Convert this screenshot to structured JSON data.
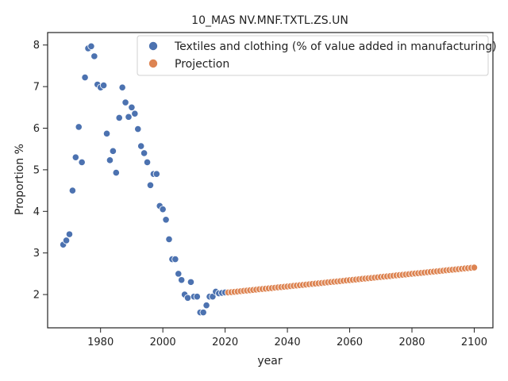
{
  "chart_data": {
    "type": "scatter",
    "title": "10_MAS NV.MNF.TXTL.ZS.UN",
    "xlabel": "year",
    "ylabel": "Proportion %",
    "xlim": [
      1963,
      2106
    ],
    "ylim": [
      1.2,
      8.3
    ],
    "x_ticks": [
      1980,
      2000,
      2020,
      2040,
      2060,
      2080,
      2100
    ],
    "y_ticks": [
      2,
      3,
      4,
      5,
      6,
      7,
      8
    ],
    "grid": false,
    "legend_position": "top-right",
    "series": [
      {
        "name": "Textiles and clothing (% of value added in manufacturing)",
        "color": "#4c72b0",
        "points": [
          [
            1968,
            3.2
          ],
          [
            1969,
            3.3
          ],
          [
            1970,
            3.45
          ],
          [
            1971,
            4.5
          ],
          [
            1972,
            5.3
          ],
          [
            1973,
            6.03
          ],
          [
            1974,
            5.18
          ],
          [
            1975,
            7.22
          ],
          [
            1976,
            7.92
          ],
          [
            1977,
            7.97
          ],
          [
            1978,
            7.73
          ],
          [
            1979,
            7.05
          ],
          [
            1980,
            6.98
          ],
          [
            1981,
            7.03
          ],
          [
            1982,
            5.87
          ],
          [
            1983,
            5.23
          ],
          [
            1984,
            5.45
          ],
          [
            1985,
            4.93
          ],
          [
            1986,
            6.25
          ],
          [
            1987,
            6.98
          ],
          [
            1988,
            6.62
          ],
          [
            1989,
            6.27
          ],
          [
            1990,
            6.5
          ],
          [
            1991,
            6.35
          ],
          [
            1992,
            5.98
          ],
          [
            1993,
            5.57
          ],
          [
            1994,
            5.4
          ],
          [
            1995,
            5.18
          ],
          [
            1996,
            4.63
          ],
          [
            1997,
            4.9
          ],
          [
            1998,
            4.9
          ],
          [
            1999,
            4.13
          ],
          [
            2000,
            4.05
          ],
          [
            2001,
            3.8
          ],
          [
            2002,
            3.33
          ],
          [
            2003,
            2.85
          ],
          [
            2004,
            2.85
          ],
          [
            2005,
            2.5
          ],
          [
            2006,
            2.35
          ],
          [
            2007,
            2.0
          ],
          [
            2008,
            1.92
          ],
          [
            2009,
            2.3
          ],
          [
            2010,
            1.95
          ],
          [
            2011,
            1.95
          ],
          [
            2012,
            1.57
          ],
          [
            2013,
            1.57
          ],
          [
            2014,
            1.74
          ],
          [
            2015,
            1.95
          ],
          [
            2016,
            1.95
          ],
          [
            2017,
            2.07
          ],
          [
            2018,
            2.03
          ],
          [
            2019,
            2.04
          ],
          [
            2020,
            2.05
          ]
        ]
      },
      {
        "name": "Projection",
        "color": "#dd8452",
        "x_start": 2021,
        "x_end": 2100,
        "y_start": 2.05,
        "y_end": 2.65
      }
    ]
  }
}
